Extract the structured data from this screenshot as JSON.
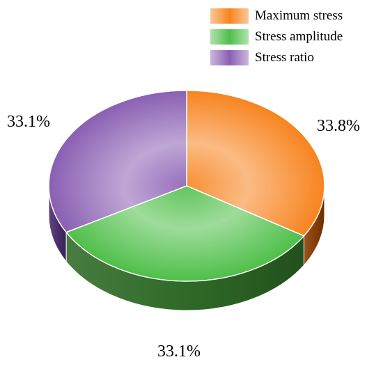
{
  "chart_data": {
    "type": "pie",
    "style": "3d",
    "title": "",
    "categories": [
      "Maximum stress",
      "Stress amplitude",
      "Stress ratio"
    ],
    "values": [
      33.8,
      33.1,
      33.1
    ],
    "value_labels": [
      "33.8%",
      "33.1%",
      "33.1%"
    ],
    "colors": [
      "#f7841f",
      "#4fbf4a",
      "#8a5fb3"
    ],
    "side_colors": [
      "#8a3e05",
      "#2f6a27",
      "#4b2f6d"
    ],
    "legend_position": "top-right"
  }
}
